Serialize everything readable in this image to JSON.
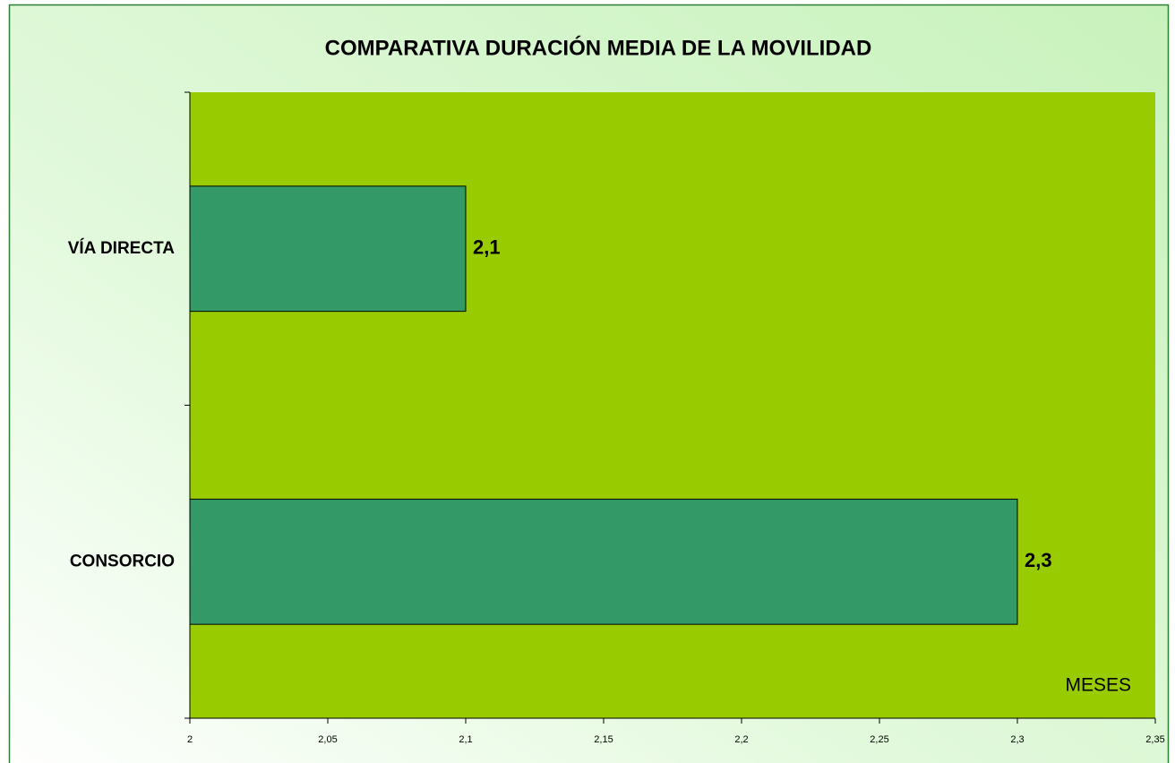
{
  "chart_data": {
    "type": "hbar",
    "title": "COMPARATIVA DURACIÓN MEDIA DE LA MOVILIDAD",
    "categories": [
      "VÍA DIRECTA",
      "CONSORCIO"
    ],
    "values": [
      2.1,
      2.3
    ],
    "value_labels": [
      "2,1",
      "2,3"
    ],
    "color": "#339966",
    "plot_background": "#99cc00",
    "xlim": [
      2,
      2.35
    ],
    "xticks": [
      2,
      {
        "value": 2.05,
        "label": "2,05"
      },
      {
        "value": 2.1,
        "label": "2,1"
      },
      {
        "value": 2.15,
        "label": "2,15"
      },
      {
        "value": 2.2,
        "label": "2,2"
      },
      {
        "value": 2.25,
        "label": "2,25"
      },
      {
        "value": 2.3,
        "label": "2,3"
      },
      {
        "value": 2.35,
        "label": "2,35"
      }
    ],
    "annotation": "MESES"
  }
}
